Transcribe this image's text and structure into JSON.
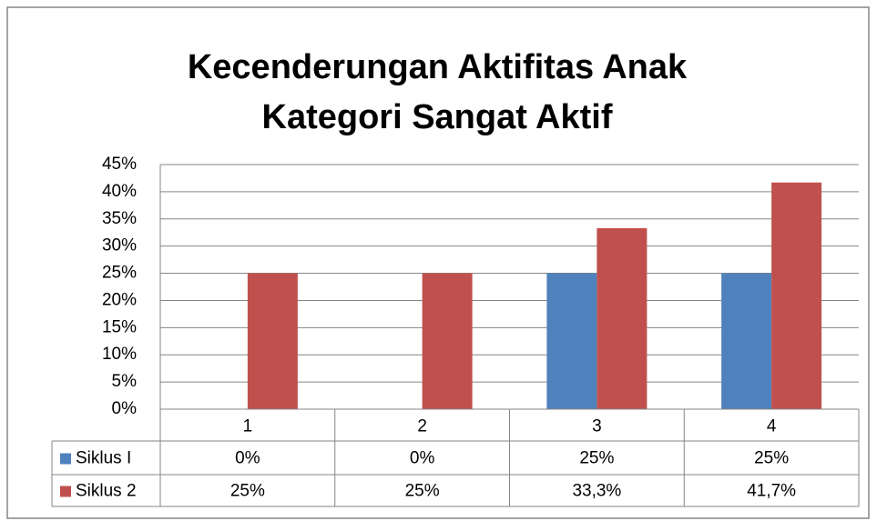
{
  "chart_data": {
    "type": "bar",
    "title": [
      "Kecenderungan Aktifitas Anak",
      "Kategori Sangat Aktif"
    ],
    "categories": [
      "1",
      "2",
      "3",
      "4"
    ],
    "series": [
      {
        "name": "Siklus I",
        "color": "#4f81bd",
        "values": [
          0,
          0,
          25,
          25
        ],
        "value_labels": [
          "0%",
          "0%",
          "25%",
          "25%"
        ]
      },
      {
        "name": "Siklus 2",
        "color": "#c0504d",
        "values": [
          25,
          25,
          33.3,
          41.7
        ],
        "value_labels": [
          "25%",
          "25%",
          "33,3%",
          "41,7%"
        ]
      }
    ],
    "ylim": [
      0,
      45
    ],
    "yticks": [
      {
        "value": 0,
        "label": "0%"
      },
      {
        "value": 5,
        "label": "5%"
      },
      {
        "value": 10,
        "label": "10%"
      },
      {
        "value": 15,
        "label": "15%"
      },
      {
        "value": 20,
        "label": "20%"
      },
      {
        "value": 25,
        "label": "25%"
      },
      {
        "value": 30,
        "label": "30%"
      },
      {
        "value": 35,
        "label": "35%"
      },
      {
        "value": 40,
        "label": "40%"
      },
      {
        "value": 45,
        "label": "45%"
      }
    ],
    "grid": true,
    "data_table": true
  }
}
